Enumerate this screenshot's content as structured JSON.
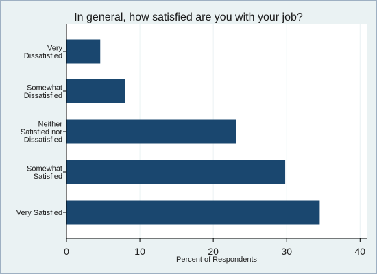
{
  "chart_data": {
    "type": "bar",
    "orientation": "horizontal",
    "title": "In general, how satisfied are you with your job?",
    "xlabel": "Percent of Respondents",
    "ylabel": "",
    "categories": [
      [
        "Very",
        "Dissatisfied"
      ],
      [
        "Somewhat",
        "Dissatisfied"
      ],
      [
        "Neither",
        "Satisfied nor",
        "Dissatisfied"
      ],
      [
        "Somewhat",
        "Satisfied"
      ],
      [
        "Very Satisfied"
      ]
    ],
    "values": [
      4.6,
      8.0,
      23.1,
      29.8,
      34.5
    ],
    "xlim": [
      0,
      41
    ],
    "xticks": [
      0,
      10,
      20,
      30,
      40
    ],
    "grid": true,
    "colors": {
      "background": "#eaf2f3",
      "plot_area": "#ffffff",
      "bar": "#1a476f",
      "grid": "#eaf2f3",
      "axis": "#000000"
    }
  }
}
